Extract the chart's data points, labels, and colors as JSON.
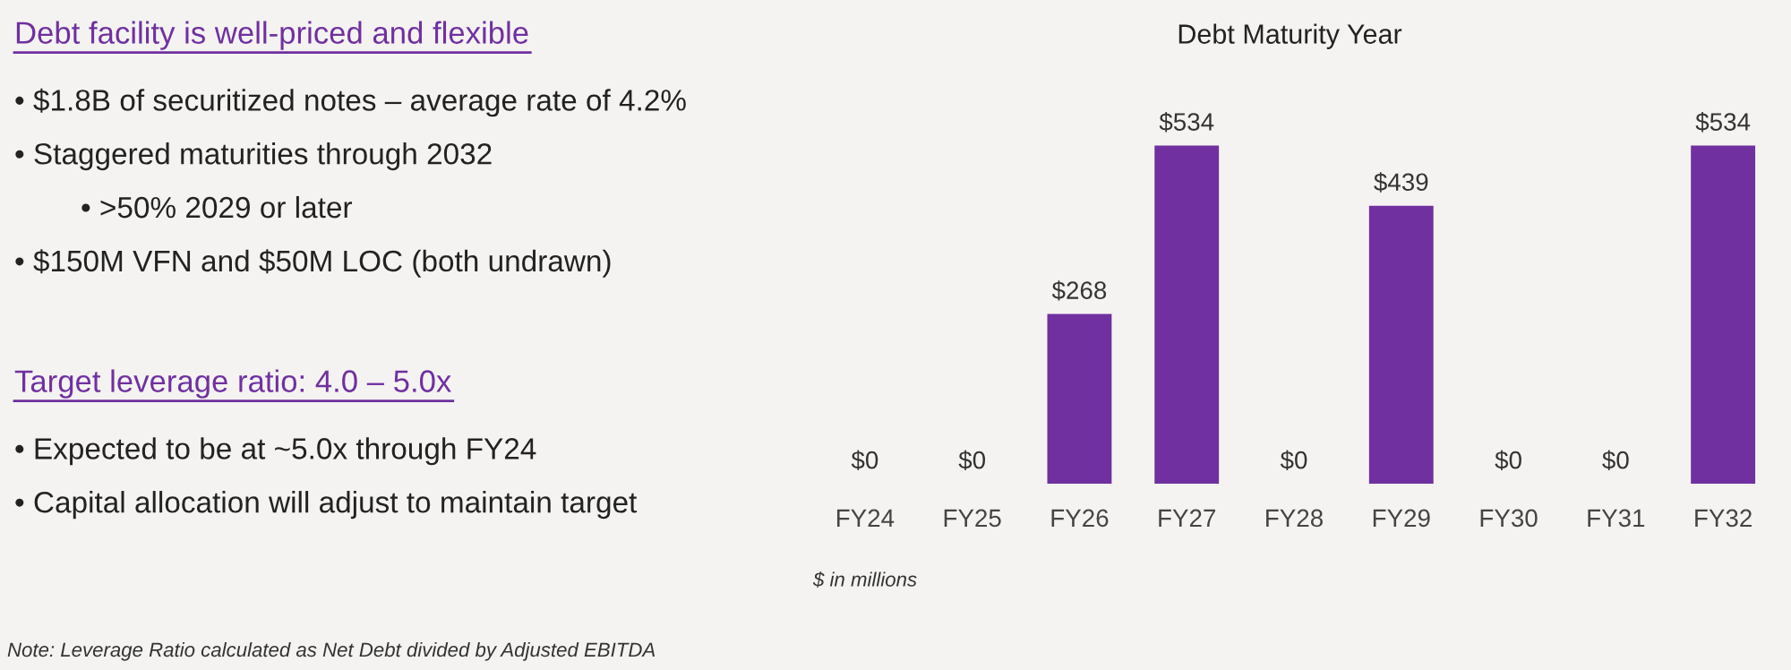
{
  "chart_data": {
    "type": "bar",
    "title": "Debt Maturity Year",
    "categories": [
      "FY24",
      "FY25",
      "FY26",
      "FY27",
      "FY28",
      "FY29",
      "FY30",
      "FY31",
      "FY32"
    ],
    "values": [
      0,
      0,
      268,
      534,
      0,
      439,
      0,
      0,
      534
    ],
    "value_labels": [
      "$0",
      "$0",
      "$268",
      "$534",
      "$0",
      "$439",
      "$0",
      "$0",
      "$534"
    ],
    "color": "#7030a0",
    "annotations": [
      "$ in millions",
      "Debt facility is well-priced and flexible",
      "• $1.8B of securitized notes – average rate of 4.2%",
      "• Staggered maturities through 2032",
      "• >50% 2029 or later",
      "• $150M VFN and $50M LOC (both undrawn)",
      "Target leverage ratio: 4.0 – 5.0x",
      "• Expected to be at ~5.0x through FY24",
      "• Capital allocation will adjust to maintain target",
      "Note: Leverage Ratio calculated as Net Debt divided by Adjusted EBITDA"
    ]
  }
}
